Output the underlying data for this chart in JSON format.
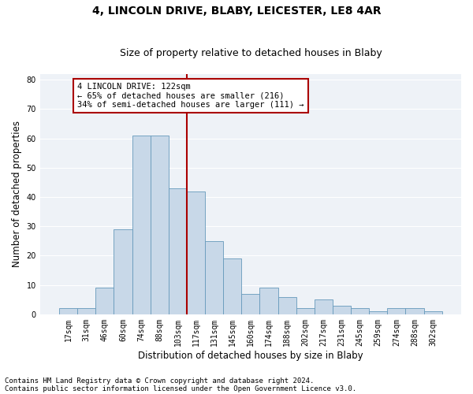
{
  "title1": "4, LINCOLN DRIVE, BLABY, LEICESTER, LE8 4AR",
  "title2": "Size of property relative to detached houses in Blaby",
  "xlabel": "Distribution of detached houses by size in Blaby",
  "ylabel": "Number of detached properties",
  "footnote1": "Contains HM Land Registry data © Crown copyright and database right 2024.",
  "footnote2": "Contains public sector information licensed under the Open Government Licence v3.0.",
  "bin_labels": [
    "17sqm",
    "31sqm",
    "46sqm",
    "60sqm",
    "74sqm",
    "88sqm",
    "103sqm",
    "117sqm",
    "131sqm",
    "145sqm",
    "160sqm",
    "174sqm",
    "188sqm",
    "202sqm",
    "217sqm",
    "231sqm",
    "245sqm",
    "259sqm",
    "274sqm",
    "288sqm",
    "302sqm"
  ],
  "bar_heights": [
    2,
    2,
    9,
    29,
    61,
    61,
    43,
    42,
    25,
    19,
    7,
    9,
    6,
    2,
    5,
    3,
    2,
    1,
    2,
    2,
    1
  ],
  "bar_color": "#c8d8e8",
  "bar_edge_color": "#6699bb",
  "vline_x_idx": 7,
  "vline_color": "#aa0000",
  "annotation_text": "4 LINCOLN DRIVE: 122sqm\n← 65% of detached houses are smaller (216)\n34% of semi-detached houses are larger (111) →",
  "annotation_box_color": "#aa0000",
  "ylim": [
    0,
    82
  ],
  "yticks": [
    0,
    10,
    20,
    30,
    40,
    50,
    60,
    70,
    80
  ],
  "bg_color": "#eef2f7",
  "grid_color": "#ffffff",
  "title_fontsize": 10,
  "subtitle_fontsize": 9,
  "axis_label_fontsize": 8.5,
  "tick_fontsize": 7,
  "annotation_fontsize": 7.5,
  "footnote_fontsize": 6.5
}
